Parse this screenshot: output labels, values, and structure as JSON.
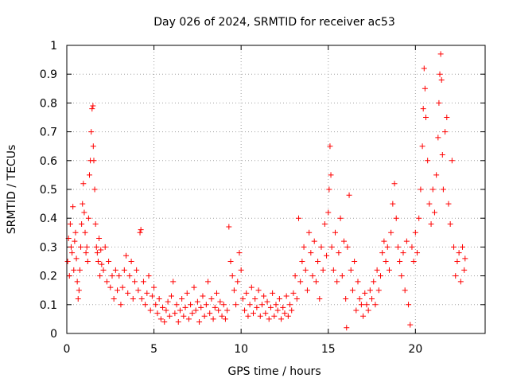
{
  "chart_data": {
    "type": "scatter",
    "title": "Day 026 of 2024, SRMTID for receiver ac53",
    "xlabel": "GPS time / hours",
    "ylabel": "SRMTID / TECUs",
    "xlim": [
      0,
      24
    ],
    "ylim": [
      0,
      1
    ],
    "xticks": [
      0,
      5,
      10,
      15,
      20
    ],
    "xtick_labels": [
      "0",
      "5",
      "10",
      "15",
      "20"
    ],
    "yticks": [
      0,
      0.1,
      0.2,
      0.3,
      0.4,
      0.5,
      0.6,
      0.7,
      0.8,
      0.9,
      1
    ],
    "ytick_labels": [
      "0",
      "0.1",
      "0.2",
      "0.3",
      "0.4",
      "0.5",
      "0.6",
      "0.7",
      "0.8",
      "0.9",
      "1"
    ],
    "grid": true,
    "marker": "+",
    "color": "#ff0000",
    "series": [
      {
        "name": "ac53",
        "points": [
          [
            0.05,
            0.25
          ],
          [
            0.1,
            0.33
          ],
          [
            0.15,
            0.2
          ],
          [
            0.2,
            0.38
          ],
          [
            0.25,
            0.3
          ],
          [
            0.3,
            0.28
          ],
          [
            0.35,
            0.44
          ],
          [
            0.4,
            0.22
          ],
          [
            0.45,
            0.32
          ],
          [
            0.5,
            0.35
          ],
          [
            0.55,
            0.26
          ],
          [
            0.6,
            0.18
          ],
          [
            0.65,
            0.12
          ],
          [
            0.7,
            0.15
          ],
          [
            0.75,
            0.22
          ],
          [
            0.8,
            0.3
          ],
          [
            0.85,
            0.38
          ],
          [
            0.9,
            0.45
          ],
          [
            0.95,
            0.52
          ],
          [
            1.0,
            0.42
          ],
          [
            1.05,
            0.35
          ],
          [
            1.1,
            0.28
          ],
          [
            1.15,
            0.3
          ],
          [
            1.2,
            0.25
          ],
          [
            1.25,
            0.4
          ],
          [
            1.3,
            0.55
          ],
          [
            1.35,
            0.6
          ],
          [
            1.4,
            0.7
          ],
          [
            1.45,
            0.78
          ],
          [
            1.5,
            0.79
          ],
          [
            1.52,
            0.65
          ],
          [
            1.55,
            0.6
          ],
          [
            1.6,
            0.5
          ],
          [
            1.65,
            0.38
          ],
          [
            1.7,
            0.3
          ],
          [
            1.75,
            0.28
          ],
          [
            1.8,
            0.25
          ],
          [
            1.85,
            0.33
          ],
          [
            1.9,
            0.2
          ],
          [
            1.95,
            0.29
          ],
          [
            2.0,
            0.24
          ],
          [
            2.1,
            0.22
          ],
          [
            2.2,
            0.3
          ],
          [
            2.3,
            0.18
          ],
          [
            2.4,
            0.25
          ],
          [
            2.5,
            0.16
          ],
          [
            2.6,
            0.2
          ],
          [
            2.7,
            0.12
          ],
          [
            2.8,
            0.22
          ],
          [
            2.9,
            0.15
          ],
          [
            3.0,
            0.2
          ],
          [
            3.1,
            0.1
          ],
          [
            3.2,
            0.16
          ],
          [
            3.3,
            0.22
          ],
          [
            3.4,
            0.27
          ],
          [
            3.5,
            0.14
          ],
          [
            3.6,
            0.2
          ],
          [
            3.7,
            0.25
          ],
          [
            3.8,
            0.12
          ],
          [
            3.9,
            0.18
          ],
          [
            4.0,
            0.22
          ],
          [
            4.1,
            0.15
          ],
          [
            4.2,
            0.35
          ],
          [
            4.25,
            0.36
          ],
          [
            4.3,
            0.12
          ],
          [
            4.4,
            0.18
          ],
          [
            4.5,
            0.1
          ],
          [
            4.6,
            0.14
          ],
          [
            4.7,
            0.2
          ],
          [
            4.8,
            0.08
          ],
          [
            4.9,
            0.13
          ],
          [
            5.0,
            0.16
          ],
          [
            5.1,
            0.1
          ],
          [
            5.2,
            0.07
          ],
          [
            5.3,
            0.12
          ],
          [
            5.4,
            0.05
          ],
          [
            5.5,
            0.09
          ],
          [
            5.6,
            0.04
          ],
          [
            5.7,
            0.08
          ],
          [
            5.8,
            0.11
          ],
          [
            5.9,
            0.06
          ],
          [
            6.0,
            0.13
          ],
          [
            6.1,
            0.18
          ],
          [
            6.2,
            0.07
          ],
          [
            6.3,
            0.1
          ],
          [
            6.4,
            0.04
          ],
          [
            6.5,
            0.08
          ],
          [
            6.6,
            0.12
          ],
          [
            6.7,
            0.06
          ],
          [
            6.8,
            0.09
          ],
          [
            6.9,
            0.14
          ],
          [
            7.0,
            0.05
          ],
          [
            7.1,
            0.1
          ],
          [
            7.2,
            0.07
          ],
          [
            7.3,
            0.16
          ],
          [
            7.4,
            0.08
          ],
          [
            7.5,
            0.11
          ],
          [
            7.6,
            0.04
          ],
          [
            7.7,
            0.09
          ],
          [
            7.8,
            0.13
          ],
          [
            7.9,
            0.06
          ],
          [
            8.0,
            0.1
          ],
          [
            8.1,
            0.18
          ],
          [
            8.2,
            0.07
          ],
          [
            8.3,
            0.12
          ],
          [
            8.4,
            0.05
          ],
          [
            8.5,
            0.09
          ],
          [
            8.6,
            0.14
          ],
          [
            8.7,
            0.08
          ],
          [
            8.8,
            0.11
          ],
          [
            8.9,
            0.06
          ],
          [
            9.0,
            0.1
          ],
          [
            9.1,
            0.05
          ],
          [
            9.2,
            0.08
          ],
          [
            9.3,
            0.37
          ],
          [
            9.4,
            0.25
          ],
          [
            9.5,
            0.2
          ],
          [
            9.6,
            0.15
          ],
          [
            9.7,
            0.1
          ],
          [
            9.8,
            0.18
          ],
          [
            9.9,
            0.28
          ],
          [
            10.0,
            0.22
          ],
          [
            10.1,
            0.12
          ],
          [
            10.2,
            0.08
          ],
          [
            10.3,
            0.14
          ],
          [
            10.4,
            0.06
          ],
          [
            10.5,
            0.1
          ],
          [
            10.6,
            0.16
          ],
          [
            10.7,
            0.07
          ],
          [
            10.8,
            0.12
          ],
          [
            10.9,
            0.09
          ],
          [
            11.0,
            0.15
          ],
          [
            11.1,
            0.06
          ],
          [
            11.2,
            0.1
          ],
          [
            11.3,
            0.13
          ],
          [
            11.4,
            0.07
          ],
          [
            11.5,
            0.11
          ],
          [
            11.6,
            0.05
          ],
          [
            11.7,
            0.09
          ],
          [
            11.8,
            0.14
          ],
          [
            11.9,
            0.06
          ],
          [
            12.0,
            0.1
          ],
          [
            12.1,
            0.08
          ],
          [
            12.2,
            0.12
          ],
          [
            12.3,
            0.05
          ],
          [
            12.4,
            0.09
          ],
          [
            12.5,
            0.07
          ],
          [
            12.6,
            0.13
          ],
          [
            12.7,
            0.06
          ],
          [
            12.8,
            0.1
          ],
          [
            12.9,
            0.08
          ],
          [
            13.0,
            0.14
          ],
          [
            13.1,
            0.2
          ],
          [
            13.2,
            0.12
          ],
          [
            13.3,
            0.4
          ],
          [
            13.4,
            0.18
          ],
          [
            13.5,
            0.25
          ],
          [
            13.6,
            0.3
          ],
          [
            13.7,
            0.22
          ],
          [
            13.8,
            0.15
          ],
          [
            13.9,
            0.35
          ],
          [
            14.0,
            0.28
          ],
          [
            14.1,
            0.2
          ],
          [
            14.2,
            0.32
          ],
          [
            14.3,
            0.18
          ],
          [
            14.4,
            0.25
          ],
          [
            14.5,
            0.12
          ],
          [
            14.6,
            0.3
          ],
          [
            14.7,
            0.22
          ],
          [
            14.8,
            0.38
          ],
          [
            14.9,
            0.27
          ],
          [
            15.0,
            0.42
          ],
          [
            15.05,
            0.5
          ],
          [
            15.1,
            0.65
          ],
          [
            15.15,
            0.55
          ],
          [
            15.2,
            0.3
          ],
          [
            15.3,
            0.22
          ],
          [
            15.4,
            0.35
          ],
          [
            15.5,
            0.18
          ],
          [
            15.6,
            0.28
          ],
          [
            15.7,
            0.4
          ],
          [
            15.8,
            0.2
          ],
          [
            15.9,
            0.32
          ],
          [
            16.0,
            0.12
          ],
          [
            16.05,
            0.02
          ],
          [
            16.1,
            0.3
          ],
          [
            16.2,
            0.48
          ],
          [
            16.3,
            0.22
          ],
          [
            16.4,
            0.15
          ],
          [
            16.5,
            0.25
          ],
          [
            16.6,
            0.08
          ],
          [
            16.7,
            0.18
          ],
          [
            16.8,
            0.12
          ],
          [
            16.9,
            0.1
          ],
          [
            17.0,
            0.06
          ],
          [
            17.1,
            0.14
          ],
          [
            17.2,
            0.1
          ],
          [
            17.3,
            0.08
          ],
          [
            17.4,
            0.15
          ],
          [
            17.5,
            0.12
          ],
          [
            17.6,
            0.18
          ],
          [
            17.7,
            0.1
          ],
          [
            17.8,
            0.22
          ],
          [
            17.9,
            0.15
          ],
          [
            18.0,
            0.2
          ],
          [
            18.1,
            0.28
          ],
          [
            18.2,
            0.32
          ],
          [
            18.3,
            0.25
          ],
          [
            18.4,
            0.3
          ],
          [
            18.5,
            0.22
          ],
          [
            18.6,
            0.35
          ],
          [
            18.7,
            0.45
          ],
          [
            18.8,
            0.52
          ],
          [
            18.9,
            0.4
          ],
          [
            19.0,
            0.3
          ],
          [
            19.1,
            0.25
          ],
          [
            19.2,
            0.2
          ],
          [
            19.3,
            0.28
          ],
          [
            19.4,
            0.15
          ],
          [
            19.5,
            0.32
          ],
          [
            19.6,
            0.1
          ],
          [
            19.7,
            0.03
          ],
          [
            19.8,
            0.3
          ],
          [
            19.9,
            0.25
          ],
          [
            20.0,
            0.35
          ],
          [
            20.1,
            0.28
          ],
          [
            20.2,
            0.4
          ],
          [
            20.3,
            0.5
          ],
          [
            20.4,
            0.65
          ],
          [
            20.45,
            0.78
          ],
          [
            20.5,
            0.92
          ],
          [
            20.55,
            0.85
          ],
          [
            20.6,
            0.75
          ],
          [
            20.7,
            0.6
          ],
          [
            20.8,
            0.45
          ],
          [
            20.9,
            0.38
          ],
          [
            21.0,
            0.5
          ],
          [
            21.1,
            0.42
          ],
          [
            21.2,
            0.55
          ],
          [
            21.3,
            0.68
          ],
          [
            21.35,
            0.8
          ],
          [
            21.4,
            0.9
          ],
          [
            21.45,
            0.97
          ],
          [
            21.5,
            0.88
          ],
          [
            21.55,
            0.62
          ],
          [
            21.6,
            0.5
          ],
          [
            21.7,
            0.7
          ],
          [
            21.8,
            0.75
          ],
          [
            21.9,
            0.45
          ],
          [
            22.0,
            0.38
          ],
          [
            22.1,
            0.6
          ],
          [
            22.2,
            0.3
          ],
          [
            22.3,
            0.2
          ],
          [
            22.4,
            0.25
          ],
          [
            22.5,
            0.28
          ],
          [
            22.6,
            0.18
          ],
          [
            22.7,
            0.3
          ],
          [
            22.8,
            0.22
          ],
          [
            22.85,
            0.26
          ]
        ]
      }
    ]
  }
}
